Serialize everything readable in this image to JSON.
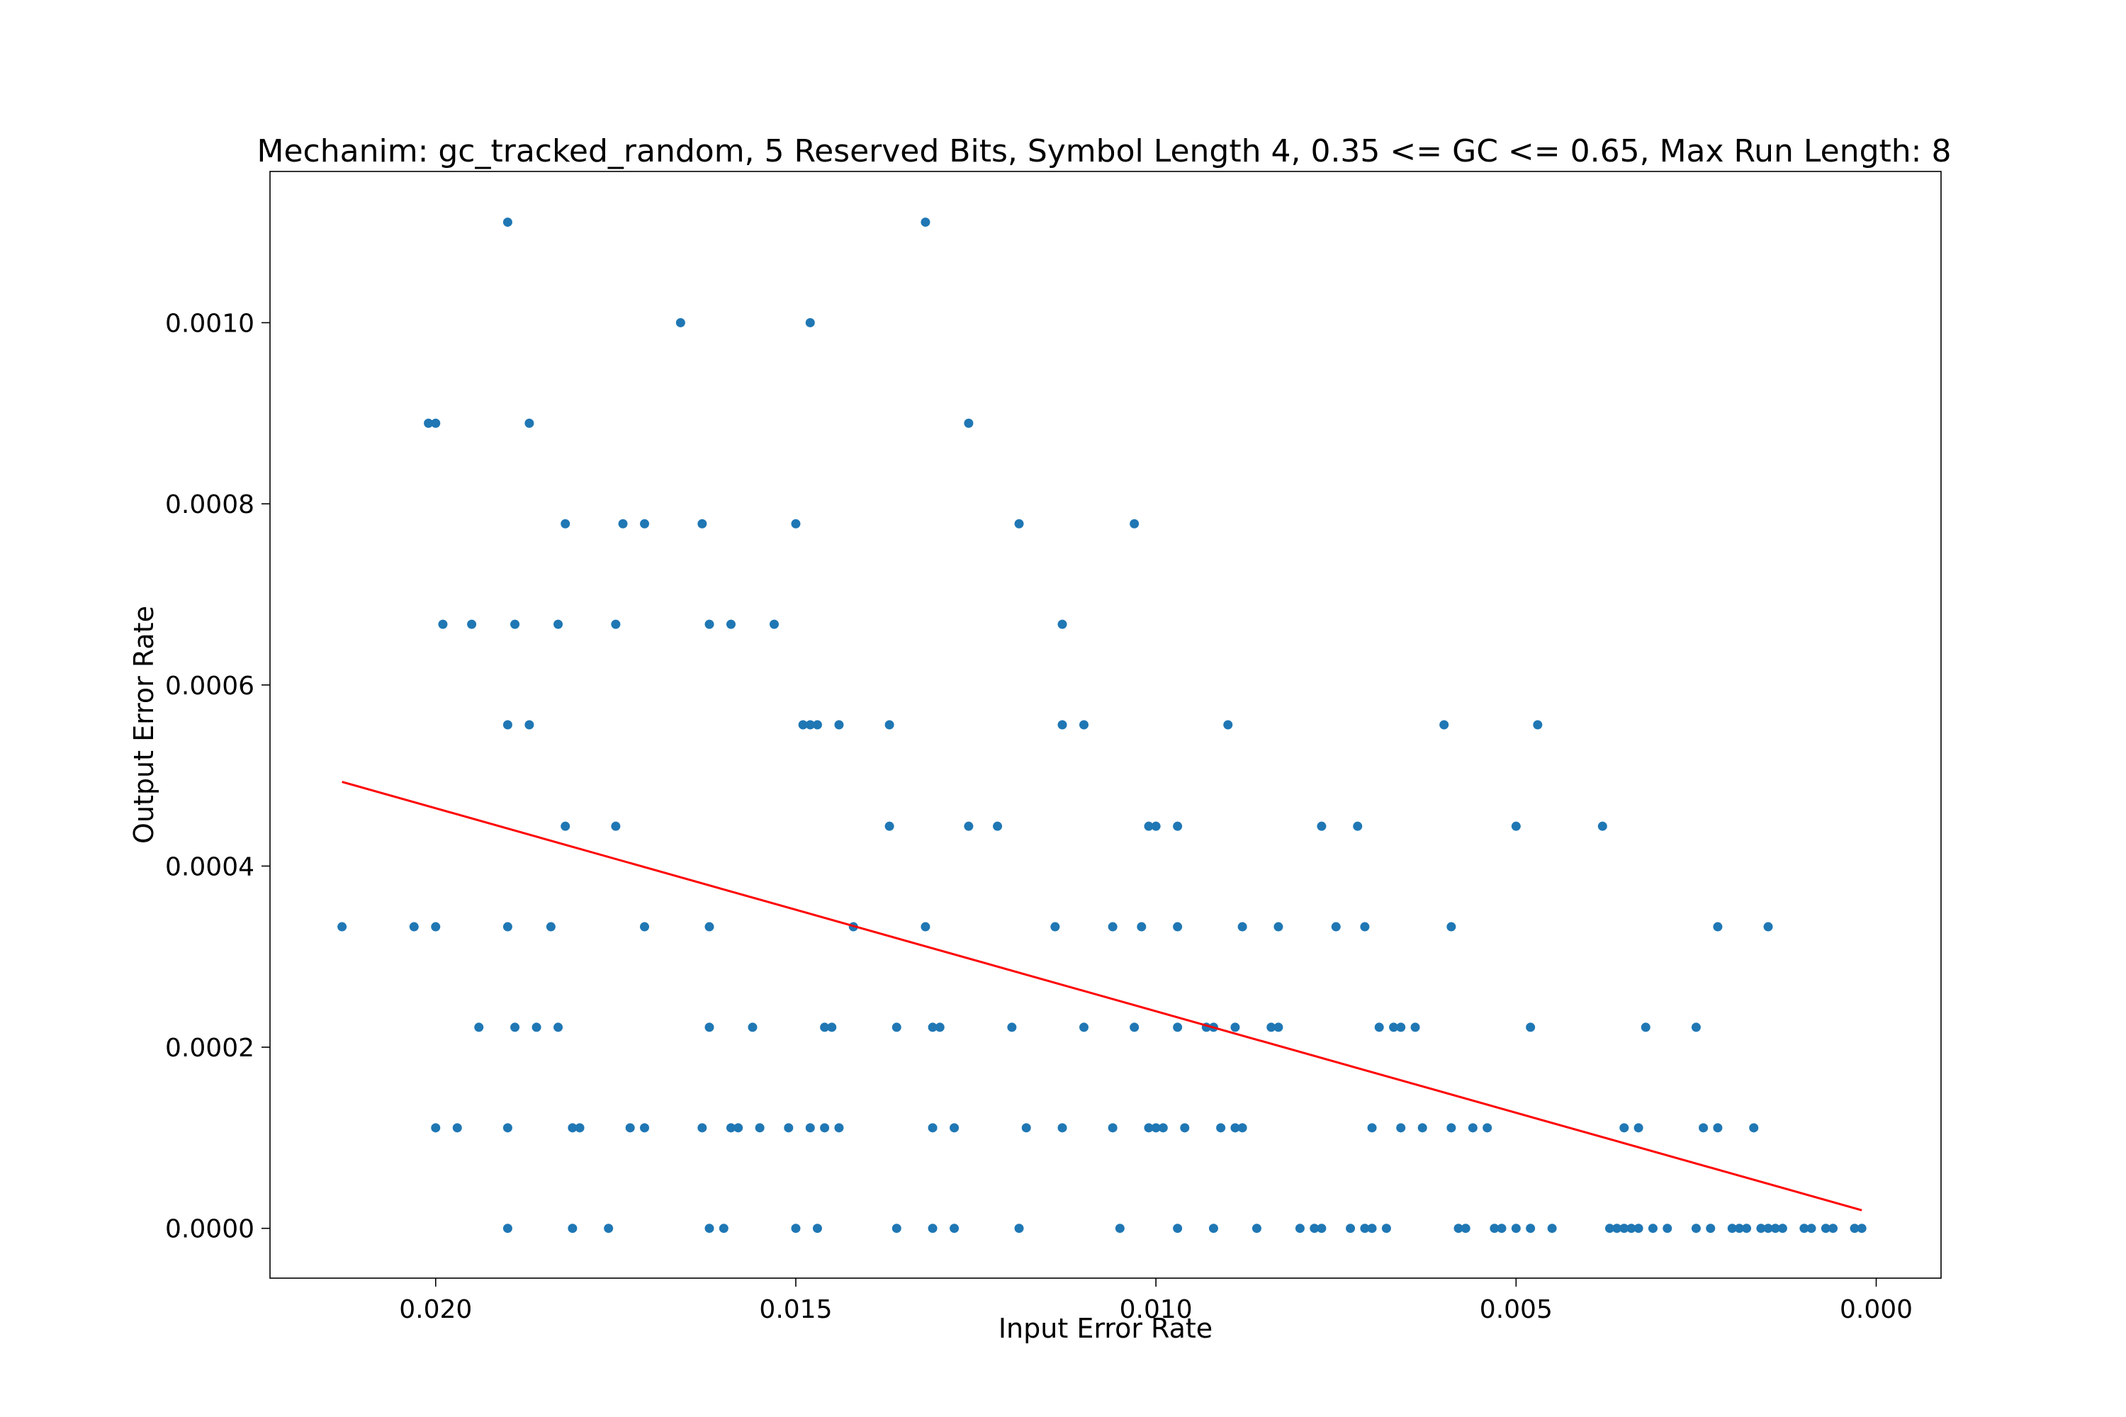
{
  "chart_data": {
    "type": "scatter",
    "title": "Mechanim: gc_tracked_random, 5 Reserved Bits, Symbol Length 4, 0.35 <= GC <= 0.65, Max Run Length: 8",
    "xlabel": "Input Error Rate",
    "ylabel": "Output Error Rate",
    "x_inverted": true,
    "xlim": [
      0.0223,
      -0.0009
    ],
    "ylim": [
      -5.5e-05,
      0.001167
    ],
    "grid": false,
    "xticks": [
      0.02,
      0.015,
      0.01,
      0.005,
      0.0
    ],
    "xtick_labels": [
      "0.020",
      "0.015",
      "0.010",
      "0.005",
      "0.000"
    ],
    "yticks": [
      0.0,
      0.0002,
      0.0004,
      0.0006,
      0.0008,
      0.001
    ],
    "ytick_labels": [
      "0.0000",
      "0.0002",
      "0.0004",
      "0.0006",
      "0.0008",
      "0.0010"
    ],
    "colors": {
      "points": "#1f77b4",
      "trend": "#ff0000"
    },
    "series": [
      {
        "type": "scatter",
        "points": [
          [
            0.019,
            0.001111
          ],
          [
            0.0132,
            0.001111
          ],
          [
            0.0166,
            0.001
          ],
          [
            0.0148,
            0.001
          ],
          [
            0.0201,
            0.000889
          ],
          [
            0.02,
            0.000889
          ],
          [
            0.0187,
            0.000889
          ],
          [
            0.0126,
            0.000889
          ],
          [
            0.0182,
            0.000778
          ],
          [
            0.0174,
            0.000778
          ],
          [
            0.0171,
            0.000778
          ],
          [
            0.0163,
            0.000778
          ],
          [
            0.015,
            0.000778
          ],
          [
            0.0119,
            0.000778
          ],
          [
            0.0103,
            0.000778
          ],
          [
            0.0199,
            0.000667
          ],
          [
            0.0195,
            0.000667
          ],
          [
            0.0189,
            0.000667
          ],
          [
            0.0183,
            0.000667
          ],
          [
            0.0175,
            0.000667
          ],
          [
            0.0162,
            0.000667
          ],
          [
            0.0159,
            0.000667
          ],
          [
            0.0153,
            0.000667
          ],
          [
            0.0113,
            0.000667
          ],
          [
            0.019,
            0.000556
          ],
          [
            0.0187,
            0.000556
          ],
          [
            0.0149,
            0.000556
          ],
          [
            0.0148,
            0.000556
          ],
          [
            0.0147,
            0.000556
          ],
          [
            0.0144,
            0.000556
          ],
          [
            0.0137,
            0.000556
          ],
          [
            0.0113,
            0.000556
          ],
          [
            0.011,
            0.000556
          ],
          [
            0.009,
            0.000556
          ],
          [
            0.006,
            0.000556
          ],
          [
            0.0047,
            0.000556
          ],
          [
            0.0182,
            0.000444
          ],
          [
            0.0175,
            0.000444
          ],
          [
            0.0137,
            0.000444
          ],
          [
            0.0126,
            0.000444
          ],
          [
            0.0122,
            0.000444
          ],
          [
            0.0101,
            0.000444
          ],
          [
            0.01,
            0.000444
          ],
          [
            0.0097,
            0.000444
          ],
          [
            0.0077,
            0.000444
          ],
          [
            0.0072,
            0.000444
          ],
          [
            0.005,
            0.000444
          ],
          [
            0.0038,
            0.000444
          ],
          [
            0.0213,
            0.000333
          ],
          [
            0.0203,
            0.000333
          ],
          [
            0.02,
            0.000333
          ],
          [
            0.019,
            0.000333
          ],
          [
            0.0184,
            0.000333
          ],
          [
            0.0171,
            0.000333
          ],
          [
            0.0162,
            0.000333
          ],
          [
            0.0142,
            0.000333
          ],
          [
            0.0132,
            0.000333
          ],
          [
            0.0114,
            0.000333
          ],
          [
            0.0106,
            0.000333
          ],
          [
            0.0102,
            0.000333
          ],
          [
            0.0097,
            0.000333
          ],
          [
            0.0088,
            0.000333
          ],
          [
            0.0083,
            0.000333
          ],
          [
            0.0075,
            0.000333
          ],
          [
            0.0071,
            0.000333
          ],
          [
            0.0059,
            0.000333
          ],
          [
            0.0022,
            0.000333
          ],
          [
            0.0015,
            0.000333
          ],
          [
            0.0194,
            0.000222
          ],
          [
            0.0189,
            0.000222
          ],
          [
            0.0186,
            0.000222
          ],
          [
            0.0183,
            0.000222
          ],
          [
            0.0162,
            0.000222
          ],
          [
            0.0156,
            0.000222
          ],
          [
            0.0146,
            0.000222
          ],
          [
            0.0145,
            0.000222
          ],
          [
            0.0136,
            0.000222
          ],
          [
            0.0131,
            0.000222
          ],
          [
            0.013,
            0.000222
          ],
          [
            0.012,
            0.000222
          ],
          [
            0.011,
            0.000222
          ],
          [
            0.0103,
            0.000222
          ],
          [
            0.0097,
            0.000222
          ],
          [
            0.0093,
            0.000222
          ],
          [
            0.0092,
            0.000222
          ],
          [
            0.0089,
            0.000222
          ],
          [
            0.0084,
            0.000222
          ],
          [
            0.0083,
            0.000222
          ],
          [
            0.0069,
            0.000222
          ],
          [
            0.0067,
            0.000222
          ],
          [
            0.0066,
            0.000222
          ],
          [
            0.0064,
            0.000222
          ],
          [
            0.0048,
            0.000222
          ],
          [
            0.0032,
            0.000222
          ],
          [
            0.0025,
            0.000222
          ],
          [
            0.02,
            0.000111
          ],
          [
            0.0197,
            0.000111
          ],
          [
            0.019,
            0.000111
          ],
          [
            0.0181,
            0.000111
          ],
          [
            0.018,
            0.000111
          ],
          [
            0.0173,
            0.000111
          ],
          [
            0.0171,
            0.000111
          ],
          [
            0.0163,
            0.000111
          ],
          [
            0.0159,
            0.000111
          ],
          [
            0.0158,
            0.000111
          ],
          [
            0.0155,
            0.000111
          ],
          [
            0.0151,
            0.000111
          ],
          [
            0.0148,
            0.000111
          ],
          [
            0.0146,
            0.000111
          ],
          [
            0.0144,
            0.000111
          ],
          [
            0.0131,
            0.000111
          ],
          [
            0.0128,
            0.000111
          ],
          [
            0.0118,
            0.000111
          ],
          [
            0.0113,
            0.000111
          ],
          [
            0.0106,
            0.000111
          ],
          [
            0.0101,
            0.000111
          ],
          [
            0.01,
            0.000111
          ],
          [
            0.0099,
            0.000111
          ],
          [
            0.0096,
            0.000111
          ],
          [
            0.0091,
            0.000111
          ],
          [
            0.0089,
            0.000111
          ],
          [
            0.0088,
            0.000111
          ],
          [
            0.007,
            0.000111
          ],
          [
            0.0066,
            0.000111
          ],
          [
            0.0063,
            0.000111
          ],
          [
            0.0059,
            0.000111
          ],
          [
            0.0056,
            0.000111
          ],
          [
            0.0054,
            0.000111
          ],
          [
            0.0035,
            0.000111
          ],
          [
            0.0033,
            0.000111
          ],
          [
            0.0024,
            0.000111
          ],
          [
            0.0022,
            0.000111
          ],
          [
            0.0017,
            0.000111
          ],
          [
            0.019,
            0.0
          ],
          [
            0.0181,
            0.0
          ],
          [
            0.0176,
            0.0
          ],
          [
            0.0162,
            0.0
          ],
          [
            0.016,
            0.0
          ],
          [
            0.015,
            0.0
          ],
          [
            0.0147,
            0.0
          ],
          [
            0.0136,
            0.0
          ],
          [
            0.0131,
            0.0
          ],
          [
            0.0128,
            0.0
          ],
          [
            0.0119,
            0.0
          ],
          [
            0.0105,
            0.0
          ],
          [
            0.0097,
            0.0
          ],
          [
            0.0092,
            0.0
          ],
          [
            0.0086,
            0.0
          ],
          [
            0.008,
            0.0
          ],
          [
            0.0078,
            0.0
          ],
          [
            0.0077,
            0.0
          ],
          [
            0.0073,
            0.0
          ],
          [
            0.0071,
            0.0
          ],
          [
            0.007,
            0.0
          ],
          [
            0.0068,
            0.0
          ],
          [
            0.0058,
            0.0
          ],
          [
            0.0057,
            0.0
          ],
          [
            0.0053,
            0.0
          ],
          [
            0.0052,
            0.0
          ],
          [
            0.005,
            0.0
          ],
          [
            0.0048,
            0.0
          ],
          [
            0.0045,
            0.0
          ],
          [
            0.0037,
            0.0
          ],
          [
            0.0036,
            0.0
          ],
          [
            0.0035,
            0.0
          ],
          [
            0.0034,
            0.0
          ],
          [
            0.0033,
            0.0
          ],
          [
            0.0031,
            0.0
          ],
          [
            0.0029,
            0.0
          ],
          [
            0.0025,
            0.0
          ],
          [
            0.0023,
            0.0
          ],
          [
            0.002,
            0.0
          ],
          [
            0.0019,
            0.0
          ],
          [
            0.0018,
            0.0
          ],
          [
            0.0016,
            0.0
          ],
          [
            0.0015,
            0.0
          ],
          [
            0.0014,
            0.0
          ],
          [
            0.0013,
            0.0
          ],
          [
            0.001,
            0.0
          ],
          [
            0.0009,
            0.0
          ],
          [
            0.0007,
            0.0
          ],
          [
            0.0006,
            0.0
          ],
          [
            0.0003,
            0.0
          ],
          [
            0.0002,
            0.0
          ]
        ]
      },
      {
        "type": "line",
        "points": [
          [
            0.0213,
            0.000493
          ],
          [
            0.0002,
            2e-05
          ]
        ]
      }
    ]
  }
}
